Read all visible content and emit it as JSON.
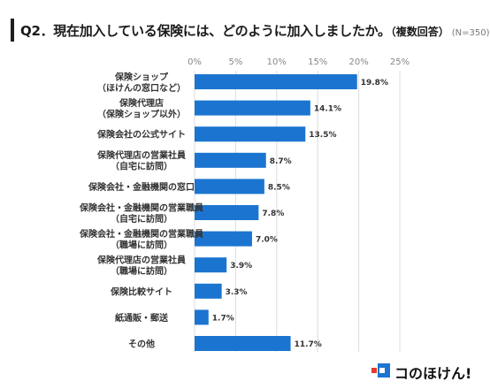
{
  "title": {
    "main": "Q2．現在加入している保険には、どのように加入しましたか。",
    "sub": "（複数回答）",
    "n": "(N=350)"
  },
  "logo": {
    "icon": "konohoken-logo-icon",
    "text": "コのほけん!"
  },
  "chart_data": {
    "type": "bar",
    "orientation": "horizontal",
    "title": "Q2．現在加入している保険には、どのように加入しましたか。（複数回答）",
    "xlim": [
      0,
      25
    ],
    "ticks": [
      "0%",
      "5%",
      "10%",
      "15%",
      "20%",
      "25%"
    ],
    "tick_values": [
      0,
      5,
      10,
      15,
      20,
      25
    ],
    "grid": "vertical",
    "bar_color": "#1b75d0",
    "categories": [
      [
        "保険ショップ",
        "（ほけんの窓口など）"
      ],
      [
        "保険代理店",
        "（保険ショップ以外）"
      ],
      [
        "保険会社の公式サイト"
      ],
      [
        "保険代理店の営業社員",
        "（自宅に訪問）"
      ],
      [
        "保険会社・金融機関の窓口"
      ],
      [
        "保険会社・金融機関の営業職員",
        "（自宅に訪問）"
      ],
      [
        "保険会社・金融機関の営業職員",
        "（職場に訪問）"
      ],
      [
        "保険代理店の営業社員",
        "（職場に訪問）"
      ],
      [
        "保険比較サイト"
      ],
      [
        "紙通販・郵送"
      ],
      [
        "その他"
      ]
    ],
    "values": [
      19.8,
      14.1,
      13.5,
      8.7,
      8.5,
      7.8,
      7.0,
      3.9,
      3.3,
      1.7,
      11.7
    ],
    "labels": [
      "19.8%",
      "14.1%",
      "13.5%",
      "8.7%",
      "8.5%",
      "7.8%",
      "7.0%",
      "3.9%",
      "3.3%",
      "1.7%",
      "11.7%"
    ]
  }
}
